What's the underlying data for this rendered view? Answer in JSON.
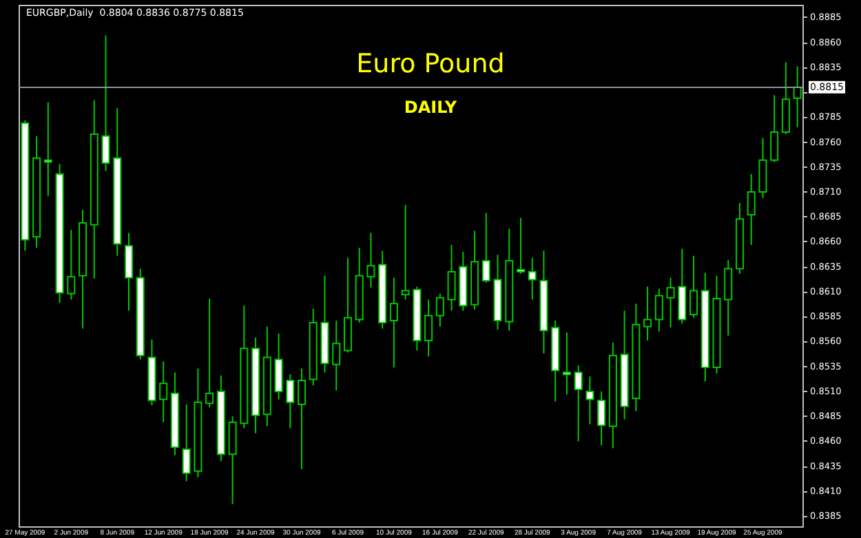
{
  "chart_data": {
    "type": "candlestick",
    "title": "Euro Pound",
    "subtitle": "DAILY",
    "annotations": [
      "EURGBP,Daily  0.8804 0.8836 0.8775 0.8815"
    ],
    "categories": [
      "27 May 2009",
      null,
      null,
      null,
      "2 Jun 2009",
      null,
      null,
      null,
      "8 Jun 2009",
      null,
      null,
      null,
      "12 Jun 2009",
      null,
      null,
      null,
      "18 Jun 2009",
      null,
      null,
      null,
      "24 Jun 2009",
      null,
      null,
      null,
      "30 Jun 2009",
      null,
      null,
      null,
      "6 Jul 2009",
      null,
      null,
      null,
      "10 Jul 2009",
      null,
      null,
      null,
      "16 Jul 2009",
      null,
      null,
      null,
      "22 Jul 2009",
      null,
      null,
      null,
      "28 Jul 2009",
      null,
      null,
      null,
      "3 Aug 2009",
      null,
      null,
      null,
      "7 Aug 2009",
      null,
      null,
      null,
      "13 Aug 2009",
      null,
      null,
      null,
      "19 Aug 2009",
      null,
      null,
      null,
      "25 Aug 2009",
      null,
      null,
      null
    ],
    "colors": [
      "#ffffff",
      "#000000",
      "#ffffff",
      "#ffffff",
      "#000000",
      "#000000",
      "#000000",
      "#ffffff",
      "#ffffff",
      "#ffffff",
      "#ffffff",
      "#ffffff",
      "#000000",
      "#ffffff",
      "#ffffff",
      "#000000",
      "#000000",
      "#ffffff",
      "#000000",
      "#000000",
      "#ffffff",
      "#000000",
      "#ffffff",
      "#ffffff",
      "#000000",
      "#000000",
      "#ffffff",
      "#000000",
      "#000000",
      "#000000",
      "#000000",
      "#ffffff",
      "#000000",
      "#000000",
      "#ffffff",
      "#000000",
      "#000000",
      "#000000",
      "#ffffff",
      "#000000",
      "#ffffff",
      "#ffffff",
      "#000000",
      "#ffffff",
      "#ffffff",
      "#ffffff",
      "#ffffff",
      "#ffffff",
      "#ffffff",
      "#ffffff",
      "#ffffff",
      "#000000",
      "#ffffff",
      "#000000",
      "#000000",
      "#000000",
      "#000000",
      "#ffffff",
      "#000000",
      "#ffffff",
      "#000000",
      "#000000",
      "#000000",
      "#000000",
      "#000000",
      "#000000",
      "#000000",
      "#000000"
    ],
    "series": [
      {
        "color": "#00c800",
        "ohlc": [
          [
            0.8779,
            0.8782,
            0.8651,
            0.8662
          ],
          [
            0.8665,
            0.8766,
            0.8654,
            0.8744
          ],
          [
            0.8742,
            0.88,
            0.8706,
            0.874
          ],
          [
            0.8728,
            0.8738,
            0.8599,
            0.8609
          ],
          [
            0.8608,
            0.8672,
            0.8602,
            0.8625
          ],
          [
            0.8626,
            0.8692,
            0.8573,
            0.8679
          ],
          [
            0.8677,
            0.8802,
            0.8623,
            0.8768
          ],
          [
            0.8766,
            0.8867,
            0.8731,
            0.8739
          ],
          [
            0.8744,
            0.8794,
            0.8646,
            0.8658
          ],
          [
            0.8656,
            0.8669,
            0.8591,
            0.8624
          ],
          [
            0.8624,
            0.8633,
            0.8542,
            0.8546
          ],
          [
            0.8544,
            0.8562,
            0.8496,
            0.8501
          ],
          [
            0.8502,
            0.854,
            0.8479,
            0.8518
          ],
          [
            0.8508,
            0.8529,
            0.8446,
            0.8454
          ],
          [
            0.8452,
            0.8497,
            0.842,
            0.8428
          ],
          [
            0.843,
            0.8533,
            0.8424,
            0.8499
          ],
          [
            0.8498,
            0.8603,
            0.8494,
            0.8508
          ],
          [
            0.851,
            0.8526,
            0.844,
            0.8447
          ],
          [
            0.8447,
            0.8485,
            0.8397,
            0.8479
          ],
          [
            0.8478,
            0.8596,
            0.8473,
            0.8553
          ],
          [
            0.8553,
            0.8564,
            0.8468,
            0.8486
          ],
          [
            0.8487,
            0.8575,
            0.8475,
            0.8544
          ],
          [
            0.8542,
            0.8568,
            0.8502,
            0.851
          ],
          [
            0.8521,
            0.8527,
            0.8473,
            0.8499
          ],
          [
            0.8497,
            0.8533,
            0.8432,
            0.8521
          ],
          [
            0.8522,
            0.8593,
            0.8516,
            0.8579
          ],
          [
            0.8579,
            0.8626,
            0.8529,
            0.8538
          ],
          [
            0.8537,
            0.8581,
            0.8511,
            0.8558
          ],
          [
            0.8551,
            0.8644,
            0.8549,
            0.8584
          ],
          [
            0.8582,
            0.8654,
            0.8579,
            0.8626
          ],
          [
            0.8625,
            0.8669,
            0.8614,
            0.8636
          ],
          [
            0.8637,
            0.8651,
            0.8573,
            0.8579
          ],
          [
            0.8581,
            0.8624,
            0.8534,
            0.8598
          ],
          [
            0.8607,
            0.8697,
            0.8602,
            0.8611
          ],
          [
            0.8612,
            0.8615,
            0.8551,
            0.8561
          ],
          [
            0.8561,
            0.8602,
            0.8545,
            0.8586
          ],
          [
            0.8586,
            0.8608,
            0.8575,
            0.8604
          ],
          [
            0.8602,
            0.8657,
            0.8591,
            0.863
          ],
          [
            0.8635,
            0.865,
            0.8591,
            0.8596
          ],
          [
            0.8597,
            0.8671,
            0.8592,
            0.864
          ],
          [
            0.8641,
            0.8689,
            0.8619,
            0.8621
          ],
          [
            0.8622,
            0.8647,
            0.8572,
            0.8581
          ],
          [
            0.858,
            0.8673,
            0.8571,
            0.8641
          ],
          [
            0.8632,
            0.8684,
            0.8628,
            0.863
          ],
          [
            0.863,
            0.8644,
            0.8602,
            0.8622
          ],
          [
            0.8621,
            0.8651,
            0.8548,
            0.8571
          ],
          [
            0.8574,
            0.8581,
            0.85,
            0.8531
          ],
          [
            0.8529,
            0.8569,
            0.8507,
            0.8527
          ],
          [
            0.8529,
            0.8536,
            0.846,
            0.8512
          ],
          [
            0.851,
            0.8525,
            0.8477,
            0.8502
          ],
          [
            0.8501,
            0.851,
            0.8456,
            0.8476
          ],
          [
            0.8475,
            0.8559,
            0.8453,
            0.8546
          ],
          [
            0.8547,
            0.8591,
            0.8482,
            0.8495
          ],
          [
            0.8503,
            0.8598,
            0.849,
            0.8577
          ],
          [
            0.8575,
            0.8615,
            0.8561,
            0.8582
          ],
          [
            0.8582,
            0.8613,
            0.857,
            0.8606
          ],
          [
            0.8604,
            0.8624,
            0.8574,
            0.8614
          ],
          [
            0.8615,
            0.8653,
            0.8578,
            0.8582
          ],
          [
            0.8587,
            0.8646,
            0.8584,
            0.8611
          ],
          [
            0.8611,
            0.8629,
            0.852,
            0.8534
          ],
          [
            0.8534,
            0.8626,
            0.8528,
            0.8603
          ],
          [
            0.8602,
            0.8642,
            0.8566,
            0.8633
          ],
          [
            0.8633,
            0.8699,
            0.8628,
            0.8683
          ],
          [
            0.8687,
            0.8728,
            0.8657,
            0.871
          ],
          [
            0.871,
            0.8764,
            0.8704,
            0.8742
          ],
          [
            0.8742,
            0.8807,
            0.874,
            0.877
          ],
          [
            0.877,
            0.884,
            0.8768,
            0.8803
          ],
          [
            0.8804,
            0.8836,
            0.8775,
            0.8815
          ]
        ]
      }
    ],
    "ylim": [
      0.8374,
      0.8897
    ],
    "yticks": [
      0.8385,
      {
        "value": 0.841,
        "label": "0.8410"
      },
      0.8435,
      {
        "value": 0.846,
        "label": "0.8460"
      },
      0.8485,
      {
        "value": 0.851,
        "label": "0.8510"
      },
      0.8535,
      {
        "value": 0.856,
        "label": "0.8560"
      },
      0.8585,
      {
        "value": 0.861,
        "label": "0.8610"
      },
      0.8635,
      {
        "value": 0.866,
        "label": "0.8660"
      },
      0.8685,
      {
        "value": 0.871,
        "label": "0.8710"
      },
      0.8735,
      {
        "value": 0.876,
        "label": "0.8760"
      },
      0.8785,
      {
        "value": 0.881,
        "label": null
      },
      0.8835,
      {
        "value": 0.886,
        "label": "0.8860"
      },
      0.8885
    ],
    "ref_lines": [
      {
        "axis": "y",
        "value": 0.8815,
        "label": "0.8815",
        "color": "#8c93a0"
      }
    ],
    "grid": false
  }
}
